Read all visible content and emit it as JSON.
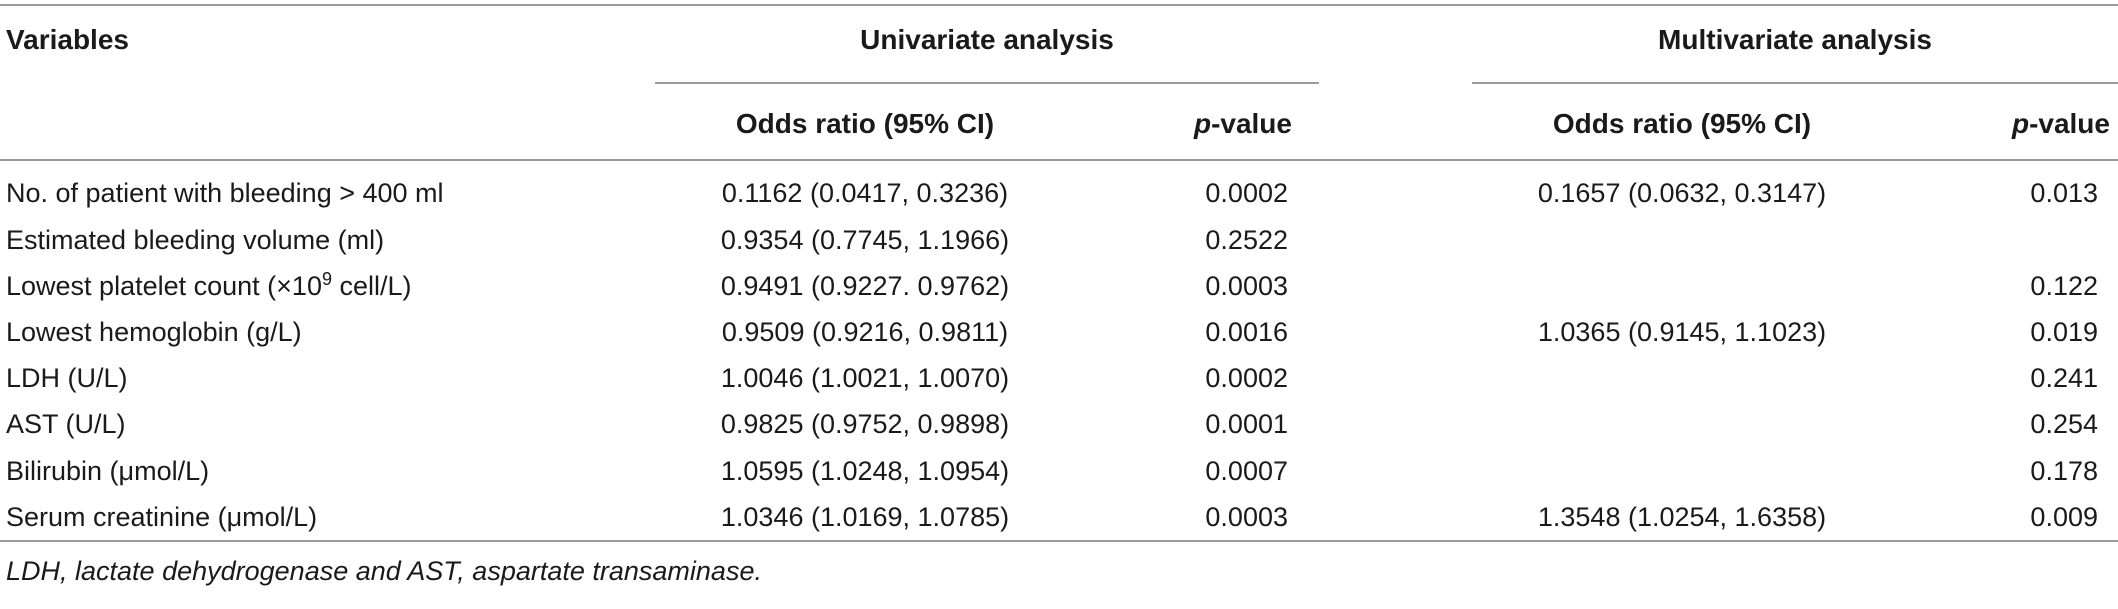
{
  "table": {
    "headers": {
      "variables": "Variables",
      "univariate": "Univariate analysis",
      "multivariate": "Multivariate analysis",
      "odds_ratio": "Odds ratio (95% CI)",
      "p_italic": "p",
      "p_rest": "-value"
    },
    "rows": [
      {
        "variable": "No. of patient with bleeding > 400 ml",
        "uni_or": "0.1162 (0.0417, 0.3236)",
        "uni_p": "0.0002",
        "multi_or": "0.1657 (0.0632, 0.3147)",
        "multi_p": "0.013"
      },
      {
        "variable": "Estimated bleeding volume (ml)",
        "uni_or": "0.9354 (0.7745, 1.1966)",
        "uni_p": "0.2522",
        "multi_or": "",
        "multi_p": ""
      },
      {
        "variable_pre": "Lowest platelet count (×10",
        "variable_sup": "9",
        "variable_post": " cell/L)",
        "uni_or": "0.9491 (0.9227. 0.9762)",
        "uni_p": "0.0003",
        "multi_or": "",
        "multi_p": "0.122"
      },
      {
        "variable": "Lowest hemoglobin (g/L)",
        "uni_or": "0.9509 (0.9216, 0.9811)",
        "uni_p": "0.0016",
        "multi_or": "1.0365 (0.9145, 1.1023)",
        "multi_p": "0.019"
      },
      {
        "variable": "LDH (U/L)",
        "uni_or": "1.0046 (1.0021, 1.0070)",
        "uni_p": "0.0002",
        "multi_or": "",
        "multi_p": "0.241"
      },
      {
        "variable": "AST (U/L)",
        "uni_or": "0.9825 (0.9752, 0.9898)",
        "uni_p": "0.0001",
        "multi_or": "",
        "multi_p": "0.254"
      },
      {
        "variable": "Bilirubin (μmol/L)",
        "uni_or": "1.0595 (1.0248, 1.0954)",
        "uni_p": "0.0007",
        "multi_or": "",
        "multi_p": "0.178"
      },
      {
        "variable": "Serum creatinine (μmol/L)",
        "uni_or": "1.0346 (1.0169, 1.0785)",
        "uni_p": "0.0003",
        "multi_or": "1.3548 (1.0254, 1.6358)",
        "multi_p": "0.009"
      }
    ],
    "footnote": "LDH, lactate dehydrogenase and AST, aspartate transaminase."
  }
}
